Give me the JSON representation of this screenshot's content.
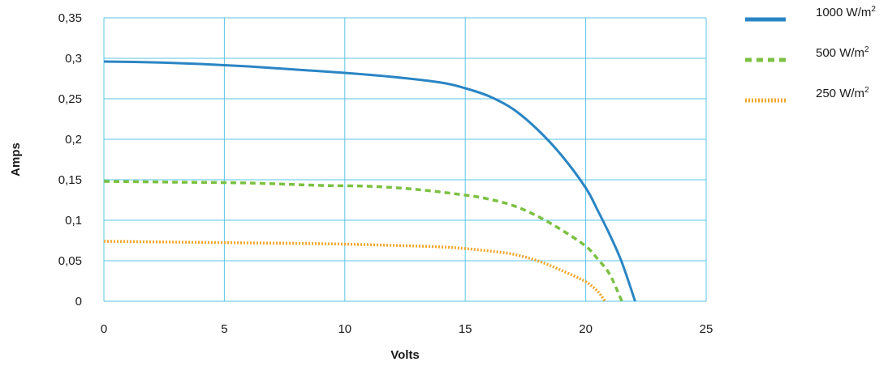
{
  "chart_data": {
    "type": "line",
    "title": "",
    "xlabel": "Volts",
    "ylabel": "Amps",
    "xlim": [
      0,
      25
    ],
    "ylim": [
      0,
      0.35
    ],
    "x_ticks": [
      0,
      5,
      10,
      15,
      20,
      25
    ],
    "x_tick_labels": [
      "0",
      "5",
      "10",
      "15",
      "20",
      "25"
    ],
    "y_ticks": [
      0,
      0.05,
      0.1,
      0.15,
      0.2,
      0.25,
      0.3,
      0.35
    ],
    "y_tick_labels": [
      "0",
      "0,05",
      "0,1",
      "0,15",
      "0,2",
      "0,25",
      "0,3",
      "0,35"
    ],
    "grid": true,
    "legend_position": "top-right",
    "series": [
      {
        "name": "1000 W/m",
        "unit_superscript": "2",
        "color": "#2a85c4",
        "style": "solid",
        "points": [
          [
            0,
            0.296
          ],
          [
            2,
            0.295
          ],
          [
            4,
            0.293
          ],
          [
            6,
            0.29
          ],
          [
            8,
            0.286
          ],
          [
            10,
            0.282
          ],
          [
            12,
            0.277
          ],
          [
            14,
            0.27
          ],
          [
            15,
            0.263
          ],
          [
            16,
            0.253
          ],
          [
            17,
            0.237
          ],
          [
            18,
            0.212
          ],
          [
            19,
            0.18
          ],
          [
            20,
            0.14
          ],
          [
            20.5,
            0.112
          ],
          [
            21,
            0.082
          ],
          [
            21.5,
            0.048
          ],
          [
            22.05,
            0.0
          ]
        ]
      },
      {
        "name": "500 W/m",
        "unit_superscript": "2",
        "color": "#7cc142",
        "style": "dashed",
        "points": [
          [
            0,
            0.148
          ],
          [
            3,
            0.147
          ],
          [
            6,
            0.146
          ],
          [
            9,
            0.143
          ],
          [
            11,
            0.142
          ],
          [
            13,
            0.138
          ],
          [
            15,
            0.131
          ],
          [
            16,
            0.126
          ],
          [
            17,
            0.118
          ],
          [
            18,
            0.105
          ],
          [
            19,
            0.088
          ],
          [
            20,
            0.068
          ],
          [
            20.5,
            0.052
          ],
          [
            21,
            0.033
          ],
          [
            21.5,
            0.0
          ]
        ]
      },
      {
        "name": "250 W/m",
        "unit_superscript": "2",
        "color": "#f0a72b",
        "style": "dotted",
        "points": [
          [
            0,
            0.074
          ],
          [
            3,
            0.073
          ],
          [
            6,
            0.072
          ],
          [
            9,
            0.071
          ],
          [
            12,
            0.069
          ],
          [
            14,
            0.067
          ],
          [
            15,
            0.065
          ],
          [
            16,
            0.062
          ],
          [
            17,
            0.058
          ],
          [
            18,
            0.05
          ],
          [
            19,
            0.038
          ],
          [
            20,
            0.024
          ],
          [
            20.5,
            0.012
          ],
          [
            20.8,
            0.0
          ]
        ]
      }
    ]
  }
}
